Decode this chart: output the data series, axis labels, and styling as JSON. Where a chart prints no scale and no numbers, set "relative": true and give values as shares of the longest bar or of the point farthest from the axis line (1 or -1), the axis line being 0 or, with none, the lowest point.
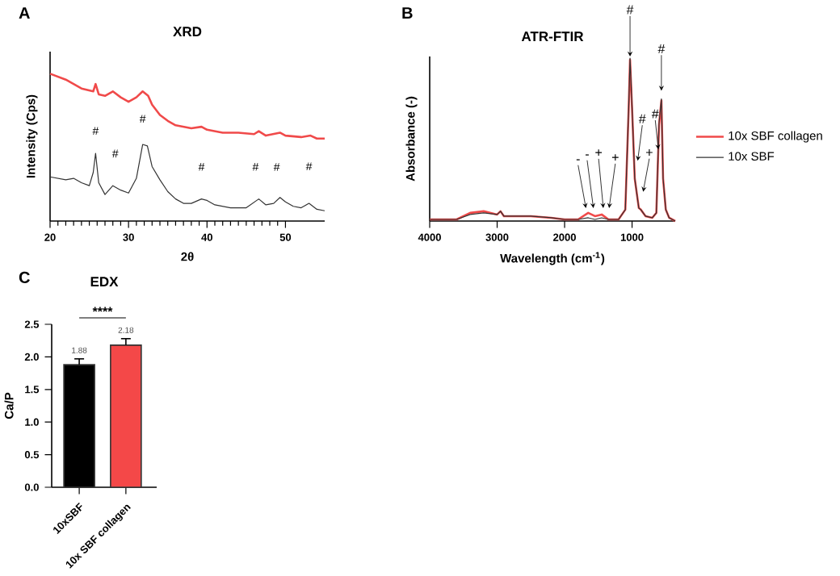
{
  "chart_data": [
    {
      "type": "line",
      "title": "XRD",
      "xlabel": "2θ",
      "ylabel": "Intensity (Cps)",
      "relative": true,
      "legend": false,
      "xlim": [
        20,
        55
      ],
      "xticks": [
        20,
        30,
        40,
        50
      ],
      "annotations": [
        "A",
        {
          "text": "#",
          "x": 25.8,
          "y": 0.46
        },
        {
          "text": "#",
          "x": 28,
          "y": 0.24
        },
        {
          "text": "#",
          "x": 31.8,
          "y": 0.52
        },
        {
          "text": "#",
          "x": 39.3,
          "y": 0.15
        },
        {
          "text": "#",
          "x": 46.6,
          "y": 0.15
        },
        {
          "text": "#",
          "x": 49.3,
          "y": 0.16
        },
        {
          "text": "#",
          "x": 53,
          "y": 0.12
        }
      ],
      "series": [
        {
          "color": "#f04a4a",
          "x": [
            20,
            22,
            24,
            25.5,
            25.8,
            26.2,
            27,
            28,
            29,
            30,
            31,
            31.8,
            32.5,
            33,
            34,
            35,
            36,
            38,
            39.3,
            40,
            42,
            44,
            46,
            46.6,
            47.5,
            49.3,
            50,
            52,
            53.2,
            54,
            55
          ],
          "values": [
            1.0,
            0.96,
            0.9,
            0.88,
            0.93,
            0.86,
            0.85,
            0.88,
            0.84,
            0.81,
            0.84,
            0.88,
            0.85,
            0.79,
            0.72,
            0.68,
            0.65,
            0.63,
            0.64,
            0.62,
            0.6,
            0.6,
            0.59,
            0.61,
            0.58,
            0.6,
            0.58,
            0.57,
            0.58,
            0.56,
            0.56
          ]
        },
        {
          "color": "#333333",
          "x": [
            20,
            22,
            23,
            24,
            25,
            25.5,
            25.8,
            26.2,
            27,
            28,
            29,
            30,
            31,
            31.8,
            32.4,
            33,
            34,
            35,
            36,
            37,
            38,
            39.3,
            40,
            41,
            43,
            45,
            46.6,
            47.5,
            48.5,
            49.3,
            50,
            51,
            52,
            53,
            54,
            55
          ],
          "values": [
            0.3,
            0.28,
            0.29,
            0.26,
            0.24,
            0.33,
            0.46,
            0.26,
            0.18,
            0.24,
            0.21,
            0.19,
            0.29,
            0.52,
            0.51,
            0.37,
            0.28,
            0.2,
            0.15,
            0.12,
            0.12,
            0.15,
            0.14,
            0.11,
            0.09,
            0.09,
            0.15,
            0.11,
            0.12,
            0.16,
            0.13,
            0.1,
            0.09,
            0.12,
            0.08,
            0.07
          ]
        }
      ]
    },
    {
      "type": "line",
      "title": "ATR-FTIR",
      "xlabel": "Wavelength (cm$^{-1}$)",
      "ylabel": "Absorbance (-)",
      "relative": true,
      "legend": "right",
      "xlim": [
        4000,
        360
      ],
      "xticks": [
        4000,
        3000,
        2000,
        1000
      ],
      "x": [
        4000,
        3600,
        3400,
        3200,
        3000,
        2950,
        2900,
        2500,
        2200,
        2000,
        1800,
        1650,
        1550,
        1450,
        1350,
        1200,
        1100,
        1050,
        1030,
        1000,
        960,
        900,
        870,
        800,
        700,
        640,
        600,
        565,
        540,
        500,
        450,
        360
      ],
      "annotations": [
        "B",
        {
          "text": "-",
          "x": 1680,
          "y": 0.07
        },
        {
          "text": "-",
          "x": 1570,
          "y": 0.07
        },
        {
          "text": "+",
          "x": 1424,
          "y": 0.07
        },
        {
          "text": "+",
          "x": 1344,
          "y": 0.07
        },
        {
          "text": "#",
          "x": 1030,
          "y": 1.0
        },
        {
          "text": "#",
          "x": 920,
          "y": 0.36
        },
        {
          "text": "+",
          "x": 840,
          "y": 0.17
        },
        {
          "text": "#",
          "x": 608,
          "y": 0.43
        },
        {
          "text": "#",
          "x": 565,
          "y": 0.79
        }
      ],
      "series": [
        {
          "name": "10x SBF collagen",
          "color": "#f04a4a",
          "values": [
            0.01,
            0.01,
            0.05,
            0.06,
            0.04,
            0.06,
            0.03,
            0.03,
            0.02,
            0.01,
            0.01,
            0.05,
            0.03,
            0.04,
            0.01,
            0.01,
            0.07,
            0.69,
            0.99,
            0.69,
            0.26,
            0.08,
            0.07,
            0.03,
            0.02,
            0.05,
            0.59,
            0.74,
            0.26,
            0.07,
            0.02,
            0
          ]
        },
        {
          "name": "10x SBF",
          "color": "#333333",
          "values": [
            0.01,
            0.01,
            0.04,
            0.05,
            0.04,
            0.06,
            0.03,
            0.03,
            0.02,
            0.01,
            0.01,
            0.02,
            0.01,
            0.02,
            0.01,
            0.01,
            0.07,
            0.7,
            1.0,
            0.7,
            0.26,
            0.08,
            0.07,
            0.03,
            0.02,
            0.05,
            0.6,
            0.75,
            0.26,
            0.07,
            0.02,
            0
          ]
        }
      ]
    },
    {
      "type": "bar",
      "title": "EDX",
      "ylabel": "Ca/P",
      "categories": [
        "10xSBF",
        "10x SBF collagen"
      ],
      "values": [
        1.88,
        2.18
      ],
      "colors": [
        "#000000",
        "#f44848"
      ],
      "errors": [
        0.09,
        0.1
      ],
      "data_labels": true,
      "ylim": [
        0,
        2.5
      ],
      "yticks": [
        {
          "value": 0,
          "label": "0.0"
        },
        0.5,
        {
          "value": 1,
          "label": "1.0"
        },
        1.5,
        {
          "value": 2,
          "label": "2.0"
        },
        2.5
      ],
      "annotations": [
        "C",
        "****"
      ]
    }
  ]
}
